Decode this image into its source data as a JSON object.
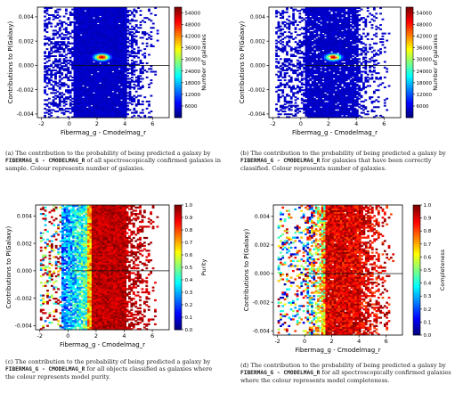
{
  "panels": [
    {
      "id": "a",
      "caption_prefix": "(a) The contribution to the probability of being predicted a galaxy by ",
      "caption_code": "FIBERMAG_G - CMODELMAG_R",
      "caption_suffix": " of all spectroscopically confirmed galaxies in sample. Colour represents number of galaxies."
    },
    {
      "id": "b",
      "caption_prefix": "(b) The contribution to the probability of being predicted a galaxy by ",
      "caption_code": "FIBERMAG_G - CMODELMAG_R",
      "caption_suffix": " for galaxies that have been correctly classified. Colour represents number of galaxies."
    },
    {
      "id": "c",
      "caption_prefix": "(c) The contribution to the probability of being predicted a galaxy by ",
      "caption_code": "FIBERMAG_G - CMODELMAG_R",
      "caption_suffix": " for all objects classified as galaxies where the colour represents model purity."
    },
    {
      "id": "d",
      "caption_prefix": "(d) The contribution to the probability of being predicted a galaxy by ",
      "caption_code": "FIBERMAG_G - CMODELMAG_R",
      "caption_suffix": " for all spectroscopically confirmed galaxies where the colour represents model completeness."
    }
  ],
  "chart_data": [
    {
      "panel": "a",
      "type": "heatmap",
      "xlabel": "Fibermag_g - Cmodelmag_r",
      "ylabel": "Contributions to P(Galaxy)",
      "colorbar_label": "Number of galaxies",
      "xlim": [
        -2.3,
        7.2
      ],
      "ylim": [
        -0.0043,
        0.0048
      ],
      "xticks": [
        "-2",
        "0",
        "2",
        "4",
        "6"
      ],
      "yticks": [
        "0.004",
        "0.002",
        "0.000",
        "-0.002",
        "-0.004"
      ],
      "colorbar_ticks": [
        "54000",
        "48000",
        "42000",
        "36000",
        "30000",
        "24000",
        "18000",
        "12000",
        "6000"
      ],
      "colorbar_range": [
        0,
        57000
      ],
      "colormap": "jet",
      "hotspot": {
        "x": 2.35,
        "y": 0.0007,
        "value": 54000
      }
    },
    {
      "panel": "b",
      "type": "heatmap",
      "xlabel": "Fibermag_g - Cmodelmag_r",
      "ylabel": "Contributions to P(Galaxy)",
      "colorbar_label": "Number of galaxies",
      "xlim": [
        -2.3,
        7.2
      ],
      "ylim": [
        -0.0043,
        0.0048
      ],
      "xticks": [
        "-2",
        "0",
        "2",
        "4",
        "6"
      ],
      "yticks": [
        "0.004",
        "0.002",
        "0.000",
        "-0.002",
        "-0.004"
      ],
      "colorbar_ticks": [
        "54000",
        "48000",
        "42000",
        "36000",
        "30000",
        "24000",
        "18000",
        "12000",
        "6000"
      ],
      "colorbar_range": [
        0,
        57000
      ],
      "colormap": "jet",
      "hotspot": {
        "x": 2.35,
        "y": 0.0007,
        "value": 54000
      }
    },
    {
      "panel": "c",
      "type": "heatmap",
      "xlabel": "Fibermag_g - Cmodelmag_r",
      "ylabel": "Contributions to P(Galaxy)",
      "colorbar_label": "Purity",
      "xlim": [
        -2.3,
        7.2
      ],
      "ylim": [
        -0.0043,
        0.0048
      ],
      "xticks": [
        "-2",
        "0",
        "2",
        "4",
        "6"
      ],
      "yticks": [
        "0.004",
        "0.002",
        "0.000",
        "-0.002",
        "-0.004"
      ],
      "colorbar_ticks": [
        "1.0",
        "0.9",
        "0.8",
        "0.7",
        "0.6",
        "0.5",
        "0.4",
        "0.3",
        "0.2",
        "0.1",
        "0.0"
      ],
      "colorbar_range": [
        0,
        1
      ],
      "colormap": "jet",
      "transition_x": 1.4
    },
    {
      "panel": "d",
      "type": "heatmap",
      "xlabel": "Fibermag_g - Cmodelmag_r",
      "ylabel": "Contributions to P(Galaxy)",
      "colorbar_label": "Completeness",
      "xlim": [
        -2.3,
        7.2
      ],
      "ylim": [
        -0.0043,
        0.0048
      ],
      "xticks": [
        "-2",
        "0",
        "2",
        "4",
        "6"
      ],
      "yticks": [
        "0.004",
        "0.002",
        "0.000",
        "-0.002",
        "-0.004"
      ],
      "colorbar_ticks": [
        "1.0",
        "0.9",
        "0.8",
        "0.7",
        "0.6",
        "0.5",
        "0.4",
        "0.3",
        "0.2",
        "0.1",
        "0.0"
      ],
      "colorbar_range": [
        0,
        1
      ],
      "colormap": "jet"
    }
  ]
}
